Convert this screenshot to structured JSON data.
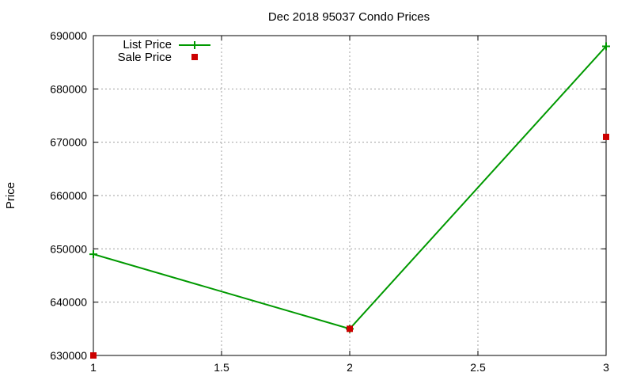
{
  "chart_data": {
    "type": "line",
    "title": "Dec 2018 95037 Condo Prices",
    "xlabel": "",
    "ylabel": "Price",
    "xlim": [
      1,
      3
    ],
    "ylim": [
      630000,
      690000
    ],
    "x_ticks": [
      1,
      1.5,
      2,
      2.5,
      3
    ],
    "x_tick_labels": [
      "1",
      "1.5",
      "2",
      "2.5",
      "3"
    ],
    "y_ticks": [
      630000,
      640000,
      650000,
      660000,
      670000,
      680000,
      690000
    ],
    "y_tick_labels": [
      "630000",
      "640000",
      "650000",
      "660000",
      "670000",
      "680000",
      "690000"
    ],
    "grid": true,
    "legend_position": "top-left",
    "series": [
      {
        "name": "List Price",
        "style": "line-with-plus-markers",
        "color": "#009900",
        "x": [
          1,
          2,
          3
        ],
        "y": [
          649000,
          635000,
          688000
        ]
      },
      {
        "name": "Sale Price",
        "style": "square-markers",
        "color": "#cc0000",
        "x": [
          1,
          2,
          3
        ],
        "y": [
          630000,
          635000,
          671000
        ]
      }
    ]
  }
}
